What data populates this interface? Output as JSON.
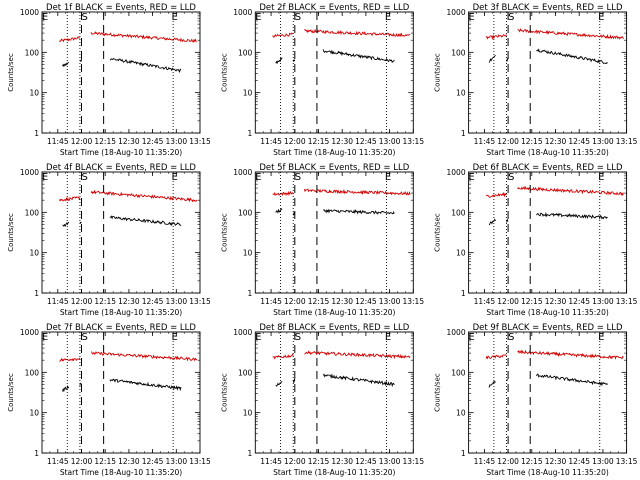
{
  "chart_data": [
    {
      "type": "line",
      "title": "Det 1f BLACK = Events, RED = LLD",
      "xlabel": "Start Time (18-Aug-10 11:35:20)",
      "ylabel": "Counts/sec",
      "yscale": "log",
      "ylim": [
        1,
        1000
      ],
      "xlim": [
        "11:35",
        "13:15"
      ],
      "x_ticks": [
        "11:45",
        "12:00",
        "12:15",
        "12:30",
        "12:45",
        "13:00",
        "13:15"
      ],
      "y_ticks": [
        "1",
        "10",
        "100",
        "1000"
      ],
      "series": [
        {
          "color": "#d40000",
          "segments": [
            {
              "x": [
                "11:46",
                "11:59"
              ],
              "y": [
                190,
                230
              ]
            },
            {
              "x": [
                "12:06",
                "13:13"
              ],
              "y": [
                300,
                190
              ]
            }
          ]
        },
        {
          "color": "#000000",
          "segments": [
            {
              "x": [
                "11:48",
                "11:52"
              ],
              "y": [
                45,
                55
              ]
            },
            {
              "x": [
                "11:59",
                "12:00"
              ],
              "y": [
                60,
                65
              ]
            },
            {
              "x": [
                "12:18",
                "13:03"
              ],
              "y": [
                70,
                35
              ]
            }
          ]
        }
      ],
      "vlines": {
        "dotted": [
          "11:51",
          "11:59",
          "12:58"
        ],
        "dashed": [
          "12:00",
          "12:14"
        ]
      },
      "annotations": {
        "S": "12:02",
        "E": "12:59",
        "S_label": "S",
        "E_label": "E"
      }
    },
    {
      "type": "line",
      "title": "Det 2f BLACK = Events, RED = LLD",
      "xlabel": "Start Time (18-Aug-10 11:35:20)",
      "ylabel": "Counts/sec",
      "yscale": "log",
      "ylim": [
        1,
        1000
      ],
      "xlim": [
        "11:35",
        "13:15"
      ],
      "x_ticks": [
        "11:45",
        "12:00",
        "12:15",
        "12:30",
        "12:45",
        "13:00",
        "13:15"
      ],
      "y_ticks": [
        "1",
        "10",
        "100",
        "1000"
      ],
      "series": [
        {
          "color": "#d40000",
          "segments": [
            {
              "x": [
                "11:46",
                "11:59"
              ],
              "y": [
                250,
                280
              ]
            },
            {
              "x": [
                "12:06",
                "13:13"
              ],
              "y": [
                340,
                260
              ]
            }
          ]
        },
        {
          "color": "#000000",
          "segments": [
            {
              "x": [
                "11:48",
                "11:52"
              ],
              "y": [
                55,
                70
              ]
            },
            {
              "x": [
                "11:59",
                "12:00"
              ],
              "y": [
                60,
                65
              ]
            },
            {
              "x": [
                "12:18",
                "13:03"
              ],
              "y": [
                110,
                60
              ]
            }
          ]
        }
      ],
      "vlines": {
        "dotted": [
          "11:51",
          "11:59",
          "12:58"
        ],
        "dashed": [
          "12:00",
          "12:14"
        ]
      },
      "annotations": {
        "S": "12:02",
        "E": "12:59",
        "S_label": "S",
        "E_label": "E"
      }
    },
    {
      "type": "line",
      "title": "Det 3f BLACK = Events, RED = LLD",
      "xlabel": "Start Time (18-Aug-10 11:35:20)",
      "ylabel": "Counts/sec",
      "yscale": "log",
      "ylim": [
        1,
        1000
      ],
      "xlim": [
        "11:35",
        "13:15"
      ],
      "x_ticks": [
        "11:45",
        "12:00",
        "12:15",
        "12:30",
        "12:45",
        "13:00",
        "13:15"
      ],
      "y_ticks": [
        "1",
        "10",
        "100",
        "1000"
      ],
      "series": [
        {
          "color": "#d40000",
          "segments": [
            {
              "x": [
                "11:46",
                "11:59"
              ],
              "y": [
                230,
                260
              ]
            },
            {
              "x": [
                "12:06",
                "13:13"
              ],
              "y": [
                350,
                230
              ]
            }
          ]
        },
        {
          "color": "#000000",
          "segments": [
            {
              "x": [
                "11:48",
                "11:52"
              ],
              "y": [
                60,
                80
              ]
            },
            {
              "x": [
                "11:59",
                "12:00"
              ],
              "y": [
                65,
                70
              ]
            },
            {
              "x": [
                "12:18",
                "13:03"
              ],
              "y": [
                115,
                55
              ]
            }
          ]
        }
      ],
      "vlines": {
        "dotted": [
          "11:51",
          "11:59",
          "12:58"
        ],
        "dashed": [
          "12:00",
          "12:14"
        ]
      },
      "annotations": {
        "S": "12:02",
        "E": "12:59",
        "S_label": "S",
        "E_label": "E"
      }
    },
    {
      "type": "line",
      "title": "Det 4f BLACK = Events, RED = LLD",
      "xlabel": "Start Time (18-Aug-10 11:35:20)",
      "ylabel": "Counts/sec",
      "yscale": "log",
      "ylim": [
        1,
        1000
      ],
      "xlim": [
        "11:35",
        "13:15"
      ],
      "x_ticks": [
        "11:45",
        "12:00",
        "12:15",
        "12:30",
        "12:45",
        "13:00",
        "13:15"
      ],
      "y_ticks": [
        "1",
        "10",
        "100",
        "1000"
      ],
      "series": [
        {
          "color": "#d40000",
          "segments": [
            {
              "x": [
                "11:46",
                "11:59"
              ],
              "y": [
                200,
                230
              ]
            },
            {
              "x": [
                "12:06",
                "13:13"
              ],
              "y": [
                320,
                200
              ]
            }
          ]
        },
        {
          "color": "#000000",
          "segments": [
            {
              "x": [
                "11:48",
                "11:52"
              ],
              "y": [
                45,
                55
              ]
            },
            {
              "x": [
                "11:59",
                "12:00"
              ],
              "y": [
                55,
                60
              ]
            },
            {
              "x": [
                "12:18",
                "13:03"
              ],
              "y": [
                75,
                50
              ]
            }
          ]
        }
      ],
      "vlines": {
        "dotted": [
          "11:51",
          "11:59",
          "12:58"
        ],
        "dashed": [
          "12:00",
          "12:14"
        ]
      },
      "annotations": {
        "S": "12:02",
        "E": "12:59",
        "S_label": "S",
        "E_label": "E"
      }
    },
    {
      "type": "line",
      "title": "Det 5f BLACK = Events, RED = LLD",
      "xlabel": "Start Time (18-Aug-10 11:35:20)",
      "ylabel": "Counts/sec",
      "yscale": "log",
      "ylim": [
        1,
        1000
      ],
      "xlim": [
        "11:35",
        "13:15"
      ],
      "x_ticks": [
        "11:45",
        "12:00",
        "12:15",
        "12:30",
        "12:45",
        "13:00",
        "13:15"
      ],
      "y_ticks": [
        "1",
        "10",
        "100",
        "1000"
      ],
      "series": [
        {
          "color": "#d40000",
          "segments": [
            {
              "x": [
                "11:46",
                "11:59"
              ],
              "y": [
                280,
                300
              ]
            },
            {
              "x": [
                "12:06",
                "13:13"
              ],
              "y": [
                350,
                290
              ]
            }
          ]
        },
        {
          "color": "#000000",
          "segments": [
            {
              "x": [
                "11:48",
                "11:52"
              ],
              "y": [
                100,
                120
              ]
            },
            {
              "x": [
                "11:59",
                "12:00"
              ],
              "y": [
                90,
                95
              ]
            },
            {
              "x": [
                "12:18",
                "13:03"
              ],
              "y": [
                110,
                95
              ]
            }
          ]
        }
      ],
      "vlines": {
        "dotted": [
          "11:51",
          "11:59",
          "12:58"
        ],
        "dashed": [
          "12:00",
          "12:14"
        ]
      },
      "annotations": {
        "S": "12:02",
        "E": "12:59",
        "S_label": "S",
        "E_label": "E"
      }
    },
    {
      "type": "line",
      "title": "Det 6f BLACK = Events, RED = LLD",
      "xlabel": "Start Time (18-Aug-10 11:35:20)",
      "ylabel": "Counts/sec",
      "yscale": "log",
      "ylim": [
        1,
        1000
      ],
      "xlim": [
        "11:35",
        "13:15"
      ],
      "x_ticks": [
        "11:45",
        "12:00",
        "12:15",
        "12:30",
        "12:45",
        "13:00",
        "13:15"
      ],
      "y_ticks": [
        "1",
        "10",
        "100",
        "1000"
      ],
      "series": [
        {
          "color": "#d40000",
          "segments": [
            {
              "x": [
                "11:46",
                "11:59"
              ],
              "y": [
                250,
                280
              ]
            },
            {
              "x": [
                "12:06",
                "13:13"
              ],
              "y": [
                400,
                290
              ]
            }
          ]
        },
        {
          "color": "#000000",
          "segments": [
            {
              "x": [
                "11:48",
                "11:52"
              ],
              "y": [
                50,
                65
              ]
            },
            {
              "x": [
                "11:59",
                "12:00"
              ],
              "y": [
                60,
                65
              ]
            },
            {
              "x": [
                "12:18",
                "13:03"
              ],
              "y": [
                90,
                75
              ]
            }
          ]
        }
      ],
      "vlines": {
        "dotted": [
          "11:51",
          "11:59",
          "12:58"
        ],
        "dashed": [
          "12:00",
          "12:14"
        ]
      },
      "annotations": {
        "S": "12:02",
        "E": "12:59",
        "S_label": "S",
        "E_label": "E"
      }
    },
    {
      "type": "line",
      "title": "Det 7f BLACK = Events, RED = LLD",
      "xlabel": "Start Time (18-Aug-10 11:35:20)",
      "ylabel": "Counts/sec",
      "yscale": "log",
      "ylim": [
        1,
        1000
      ],
      "xlim": [
        "11:35",
        "13:15"
      ],
      "x_ticks": [
        "11:45",
        "12:00",
        "12:15",
        "12:30",
        "12:45",
        "13:00",
        "13:15"
      ],
      "y_ticks": [
        "1",
        "10",
        "100",
        "1000"
      ],
      "series": [
        {
          "color": "#d40000",
          "segments": [
            {
              "x": [
                "11:46",
                "11:59"
              ],
              "y": [
                200,
                220
              ]
            },
            {
              "x": [
                "12:06",
                "13:13"
              ],
              "y": [
                300,
                210
              ]
            }
          ]
        },
        {
          "color": "#000000",
          "segments": [
            {
              "x": [
                "11:48",
                "11:52"
              ],
              "y": [
                35,
                45
              ]
            },
            {
              "x": [
                "11:59",
                "12:00"
              ],
              "y": [
                50,
                55
              ]
            },
            {
              "x": [
                "12:18",
                "13:03"
              ],
              "y": [
                65,
                40
              ]
            }
          ]
        }
      ],
      "vlines": {
        "dotted": [
          "11:51",
          "11:59",
          "12:58"
        ],
        "dashed": [
          "12:00",
          "12:14"
        ]
      },
      "annotations": {
        "S": "12:02",
        "E": "12:59",
        "S_label": "S",
        "E_label": "E"
      }
    },
    {
      "type": "line",
      "title": "Det 8f BLACK = Events, RED = LLD",
      "xlabel": "Start Time (18-Aug-10 11:35:20)",
      "ylabel": "Counts/sec",
      "yscale": "log",
      "ylim": [
        1,
        1000
      ],
      "xlim": [
        "11:35",
        "13:15"
      ],
      "x_ticks": [
        "11:45",
        "12:00",
        "12:15",
        "12:30",
        "12:45",
        "13:00",
        "13:15"
      ],
      "y_ticks": [
        "1",
        "10",
        "100",
        "1000"
      ],
      "series": [
        {
          "color": "#d40000",
          "segments": [
            {
              "x": [
                "11:46",
                "11:59"
              ],
              "y": [
                230,
                260
              ]
            },
            {
              "x": [
                "12:06",
                "13:13"
              ],
              "y": [
                310,
                240
              ]
            }
          ]
        },
        {
          "color": "#000000",
          "segments": [
            {
              "x": [
                "11:48",
                "11:52"
              ],
              "y": [
                45,
                60
              ]
            },
            {
              "x": [
                "11:59",
                "12:00"
              ],
              "y": [
                60,
                65
              ]
            },
            {
              "x": [
                "12:18",
                "13:03"
              ],
              "y": [
                85,
                50
              ]
            }
          ]
        }
      ],
      "vlines": {
        "dotted": [
          "11:51",
          "11:59",
          "12:58"
        ],
        "dashed": [
          "12:00",
          "12:14"
        ]
      },
      "annotations": {
        "S": "12:02",
        "E": "12:59",
        "S_label": "S",
        "E_label": "E"
      }
    },
    {
      "type": "line",
      "title": "Det 9f BLACK = Events, RED = LLD",
      "xlabel": "Start Time (18-Aug-10 11:35:20)",
      "ylabel": "Counts/sec",
      "yscale": "log",
      "ylim": [
        1,
        1000
      ],
      "xlim": [
        "11:35",
        "13:15"
      ],
      "x_ticks": [
        "11:45",
        "12:00",
        "12:15",
        "12:30",
        "12:45",
        "13:00",
        "13:15"
      ],
      "y_ticks": [
        "1",
        "10",
        "100",
        "1000"
      ],
      "series": [
        {
          "color": "#d40000",
          "segments": [
            {
              "x": [
                "11:46",
                "11:59"
              ],
              "y": [
                230,
                260
              ]
            },
            {
              "x": [
                "12:06",
                "13:13"
              ],
              "y": [
                320,
                230
              ]
            }
          ]
        },
        {
          "color": "#000000",
          "segments": [
            {
              "x": [
                "11:48",
                "11:52"
              ],
              "y": [
                45,
                60
              ]
            },
            {
              "x": [
                "11:59",
                "12:00"
              ],
              "y": [
                60,
                65
              ]
            },
            {
              "x": [
                "12:18",
                "13:03"
              ],
              "y": [
                85,
                50
              ]
            }
          ]
        }
      ],
      "vlines": {
        "dotted": [
          "11:51",
          "11:59",
          "12:58"
        ],
        "dashed": [
          "12:00",
          "12:14"
        ]
      },
      "annotations": {
        "S": "12:02",
        "E": "12:59",
        "S_label": "S",
        "E_label": "E"
      }
    }
  ]
}
